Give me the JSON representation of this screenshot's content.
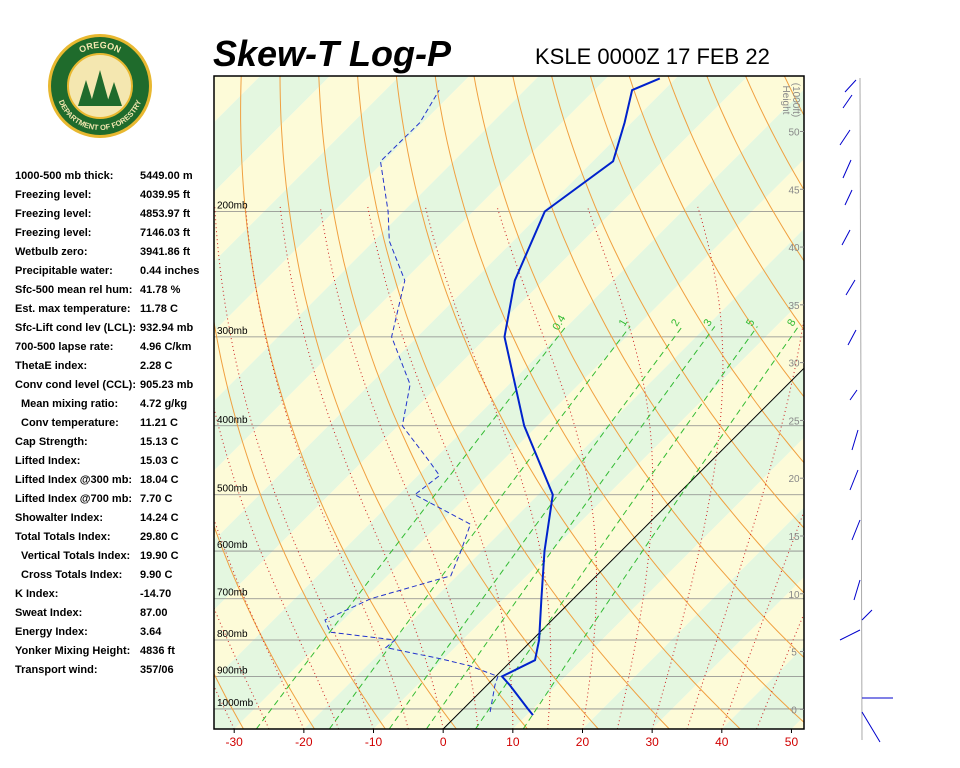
{
  "header": {
    "title": "Skew-T Log-P",
    "station": "KSLE 0000Z 17 FEB 22"
  },
  "logo": {
    "top": "OREGON",
    "bottom": "DEPARTMENT OF FORESTRY"
  },
  "stats": [
    {
      "label": "1000-500 mb thick:",
      "value": "5449.00 m"
    },
    {
      "label": "Freezing level:",
      "value": "4039.95 ft"
    },
    {
      "label": "Freezing level:",
      "value": "4853.97 ft"
    },
    {
      "label": "Freezing level:",
      "value": "7146.03 ft"
    },
    {
      "label": "Wetbulb zero:",
      "value": "3941.86 ft"
    },
    {
      "label": "Precipitable water:",
      "value": "0.44 inches"
    },
    {
      "label": "Sfc-500 mean rel hum:",
      "value": "41.78 %"
    },
    {
      "label": "Est. max temperature:",
      "value": "11.78 C"
    },
    {
      "label": "Sfc-Lift cond lev (LCL):",
      "value": "932.94 mb"
    },
    {
      "label": "700-500 lapse rate:",
      "value": "4.96 C/km"
    },
    {
      "label": "ThetaE index:",
      "value": "2.28 C"
    },
    {
      "label": "Conv cond level (CCL):",
      "value": "905.23 mb"
    },
    {
      "label": "Mean mixing ratio:",
      "value": "4.72 g/kg",
      "indent": true
    },
    {
      "label": "Conv temperature:",
      "value": "11.21 C",
      "indent": true
    },
    {
      "label": "Cap Strength:",
      "value": "15.13 C"
    },
    {
      "label": "Lifted Index:",
      "value": "15.03 C"
    },
    {
      "label": "Lifted Index @300 mb:",
      "value": "18.04 C"
    },
    {
      "label": "Lifted Index @700 mb:",
      "value": "7.70 C"
    },
    {
      "label": "Showalter Index:",
      "value": "14.24 C"
    },
    {
      "label": "Total Totals Index:",
      "value": "29.80 C"
    },
    {
      "label": "Vertical Totals Index:",
      "value": "19.90 C",
      "indent": true
    },
    {
      "label": "Cross Totals Index:",
      "value": "9.90 C",
      "indent": true
    },
    {
      "label": "K Index:",
      "value": "-14.70"
    },
    {
      "label": "Sweat Index:",
      "value": "87.00"
    },
    {
      "label": "Energy Index:",
      "value": "3.64"
    },
    {
      "label": "Yonker Mixing Height:",
      "value": "4836 ft"
    },
    {
      "label": "Transport wind:",
      "value": "357/06"
    }
  ],
  "chart_data": {
    "type": "skewt",
    "xlim": [
      -32.9,
      51.8
    ],
    "xticks": [
      -30,
      -20,
      -10,
      0,
      10,
      20,
      30,
      40,
      50
    ],
    "ylim": [
      1067,
      129
    ],
    "ylog": true,
    "yticks": [
      {
        "value": 1000,
        "label": "1000mb"
      },
      {
        "value": 900,
        "label": "900mb"
      },
      {
        "value": 800,
        "label": "800mb"
      },
      {
        "value": 700,
        "label": "700mb"
      },
      {
        "value": 600,
        "label": "600mb"
      },
      {
        "value": 500,
        "label": "500mb"
      },
      {
        "value": 400,
        "label": "400mb"
      },
      {
        "value": 300,
        "label": "300mb"
      },
      {
        "value": 200,
        "label": "200mb"
      }
    ],
    "y2label": [
      "Height",
      "(1000ft)"
    ],
    "y2lim": [
      -1.7,
      54.8
    ],
    "y2ticks": [
      0,
      5,
      10,
      15,
      20,
      25,
      30,
      35,
      40,
      45,
      50
    ],
    "mixing_ratios": [
      0.4,
      1,
      2,
      3,
      5,
      8
    ],
    "series": [
      {
        "color": "#0022cc",
        "style": "solid",
        "pressure": [
          1020,
          1000,
          925,
          900,
          854,
          800,
          700,
          600,
          500,
          400,
          300,
          250,
          200,
          170,
          150,
          135,
          130
        ],
        "values": [
          10.9,
          9.3,
          3.2,
          0.9,
          3.3,
          1.0,
          -4.6,
          -11.0,
          -17.9,
          -31.9,
          -47.5,
          -54.1,
          -59.7,
          -57.1,
          -61.0,
          -64.6,
          -62.3
        ]
      },
      {
        "color": "#2233cc",
        "style": "dashed",
        "pressure": [
          1010,
          925,
          900,
          870,
          850,
          820,
          800,
          780,
          750,
          700,
          650,
          600,
          550,
          500,
          470,
          450,
          400,
          350,
          300,
          250,
          220,
          200,
          170,
          150,
          135
        ],
        "values": [
          4.3,
          1.1,
          0.3,
          -5.2,
          -10.5,
          -19.9,
          -19.7,
          -30.1,
          -32.6,
          -29.1,
          -20.9,
          -23.0,
          -25.5,
          -37.7,
          -36.9,
          -40.2,
          -49.4,
          -54.2,
          -63.7,
          -69.9,
          -77.8,
          -82.2,
          -90.5,
          -90.4,
          -92.3
        ]
      }
    ]
  }
}
